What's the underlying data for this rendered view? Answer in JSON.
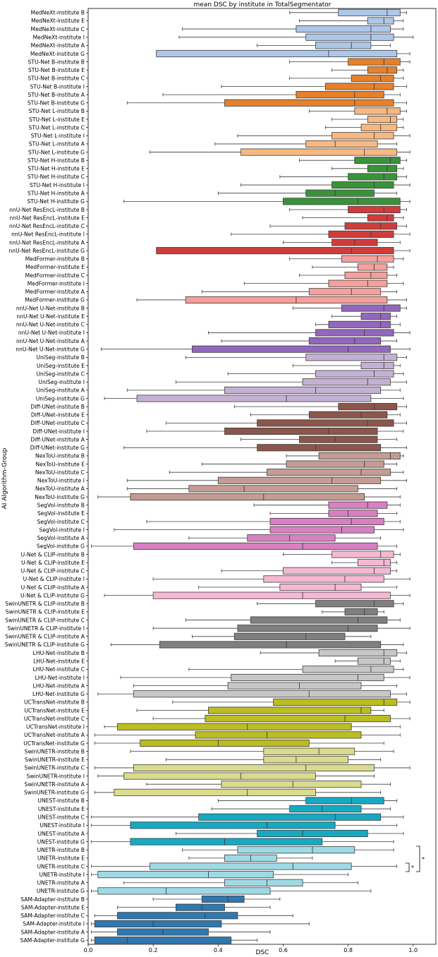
{
  "chart_data": {
    "type": "boxplot",
    "title": "mean DSC by institute in TotalSegmentator",
    "xlabel": "DSC",
    "ylabel": "AI Algorithm-Group",
    "xlim": [
      0.0,
      1.07
    ],
    "xticks": [
      0.0,
      0.2,
      0.4,
      0.6,
      0.8,
      1.0
    ],
    "xtick_labels": [
      "0.0",
      "0.2",
      "0.4",
      "0.6",
      "0.8",
      "1.0"
    ],
    "institutes": [
      "B",
      "E",
      "C",
      "I",
      "A",
      "G"
    ],
    "groups": [
      {
        "name": "MedNeXt",
        "color": "#aec7e8",
        "boxes": [
          [
            0.62,
            0.77,
            0.92,
            0.96,
            0.98
          ],
          [
            0.65,
            0.86,
            0.91,
            0.94,
            0.97
          ],
          [
            0.29,
            0.64,
            0.87,
            0.93,
            0.97
          ],
          [
            0.28,
            0.67,
            0.87,
            0.94,
            1.0
          ],
          [
            0.52,
            0.7,
            0.81,
            0.87,
            0.93
          ],
          [
            0.21,
            0.21,
            0.74,
            0.95,
            0.99
          ]
        ]
      },
      {
        "name": "STU-Net B",
        "color": "#e6812b",
        "boxes": [
          [
            0.62,
            0.8,
            0.91,
            0.96,
            0.99
          ],
          [
            0.75,
            0.86,
            0.92,
            0.95,
            0.97
          ],
          [
            0.62,
            0.81,
            0.9,
            0.94,
            0.97
          ],
          [
            0.41,
            0.73,
            0.88,
            0.94,
            0.98
          ],
          [
            0.23,
            0.64,
            0.82,
            0.91,
            0.96
          ],
          [
            0.12,
            0.42,
            0.82,
            0.94,
            0.98
          ]
        ]
      },
      {
        "name": "STU-Net L",
        "color": "#f7b881",
        "boxes": [
          [
            0.68,
            0.82,
            0.92,
            0.96,
            0.98
          ],
          [
            0.75,
            0.86,
            0.93,
            0.95,
            0.97
          ],
          [
            0.73,
            0.84,
            0.9,
            0.95,
            0.97
          ],
          [
            0.46,
            0.75,
            0.88,
            0.94,
            0.99
          ],
          [
            0.39,
            0.67,
            0.76,
            0.89,
            0.95
          ],
          [
            0.19,
            0.47,
            0.85,
            0.95,
            0.99
          ]
        ]
      },
      {
        "name": "STU-Net H",
        "color": "#3a933a",
        "boxes": [
          [
            0.65,
            0.82,
            0.93,
            0.96,
            0.98
          ],
          [
            0.75,
            0.86,
            0.92,
            0.95,
            0.97
          ],
          [
            0.59,
            0.8,
            0.91,
            0.95,
            0.98
          ],
          [
            0.47,
            0.75,
            0.88,
            0.94,
            0.99
          ],
          [
            0.4,
            0.67,
            0.76,
            0.88,
            0.95
          ],
          [
            0.11,
            0.6,
            0.83,
            0.96,
            0.99
          ]
        ]
      },
      {
        "name": "nnU-Net ResEncL",
        "color": "#d03c3c",
        "boxes": [
          [
            0.62,
            0.8,
            0.91,
            0.96,
            0.98
          ],
          [
            0.66,
            0.86,
            0.92,
            0.94,
            0.97
          ],
          [
            0.56,
            0.79,
            0.9,
            0.95,
            0.98
          ],
          [
            0.44,
            0.74,
            0.87,
            0.94,
            0.99
          ],
          [
            0.6,
            0.75,
            0.82,
            0.89,
            0.96
          ],
          [
            0.21,
            0.21,
            0.81,
            0.94,
            0.99
          ]
        ]
      },
      {
        "name": "MedFormer",
        "color": "#f5a09a",
        "boxes": [
          [
            0.62,
            0.78,
            0.89,
            0.94,
            0.97
          ],
          [
            0.69,
            0.83,
            0.88,
            0.92,
            0.94
          ],
          [
            0.65,
            0.79,
            0.87,
            0.92,
            0.95
          ],
          [
            0.48,
            0.74,
            0.86,
            0.92,
            0.97
          ],
          [
            0.35,
            0.68,
            0.81,
            0.9,
            0.95
          ],
          [
            0.15,
            0.3,
            0.64,
            0.92,
            0.98
          ]
        ]
      },
      {
        "name": "nnU-Net U-Net",
        "color": "#9367bd",
        "boxes": [
          [
            0.63,
            0.78,
            0.91,
            0.96,
            0.98
          ],
          [
            0.75,
            0.84,
            0.9,
            0.93,
            0.95
          ],
          [
            0.7,
            0.74,
            0.9,
            0.93,
            0.96
          ],
          [
            0.37,
            0.7,
            0.85,
            0.94,
            0.99
          ],
          [
            0.41,
            0.68,
            0.82,
            0.9,
            0.95
          ],
          [
            0.04,
            0.32,
            0.8,
            0.93,
            0.99
          ]
        ]
      },
      {
        "name": "UniSeg",
        "color": "#c5b0d5",
        "boxes": [
          [
            0.3,
            0.67,
            0.91,
            0.95,
            0.98
          ],
          [
            0.63,
            0.84,
            0.91,
            0.94,
            0.96
          ],
          [
            0.43,
            0.7,
            0.88,
            0.94,
            0.97
          ],
          [
            0.27,
            0.66,
            0.86,
            0.93,
            0.98
          ],
          [
            0.12,
            0.42,
            0.7,
            0.9,
            0.96
          ],
          [
            0.05,
            0.15,
            0.61,
            0.87,
            0.97
          ]
        ]
      },
      {
        "name": "Diff-UNet",
        "color": "#8c564b",
        "boxes": [
          [
            0.45,
            0.77,
            0.88,
            0.95,
            0.98
          ],
          [
            0.5,
            0.68,
            0.84,
            0.92,
            0.96
          ],
          [
            0.24,
            0.52,
            0.86,
            0.94,
            0.98
          ],
          [
            0.18,
            0.42,
            0.74,
            0.89,
            0.97
          ],
          [
            0.47,
            0.65,
            0.76,
            0.89,
            0.95
          ],
          [
            0.11,
            0.52,
            0.7,
            0.9,
            0.98
          ]
        ]
      },
      {
        "name": "NexToU",
        "color": "#c49c94",
        "boxes": [
          [
            0.61,
            0.71,
            0.93,
            0.96,
            0.97
          ],
          [
            0.35,
            0.61,
            0.85,
            0.91,
            0.95
          ],
          [
            0.25,
            0.55,
            0.84,
            0.93,
            0.97
          ],
          [
            0.12,
            0.4,
            0.75,
            0.9,
            0.98
          ],
          [
            0.12,
            0.31,
            0.48,
            0.83,
            0.95
          ],
          [
            0.03,
            0.13,
            0.54,
            0.85,
            0.96
          ]
        ]
      },
      {
        "name": "SegVol",
        "color": "#d880c2",
        "boxes": [
          [
            0.51,
            0.74,
            0.86,
            0.92,
            0.96
          ],
          [
            0.56,
            0.74,
            0.8,
            0.89,
            0.95
          ],
          [
            0.18,
            0.56,
            0.81,
            0.91,
            0.96
          ],
          [
            0.08,
            0.56,
            0.78,
            0.88,
            0.97
          ],
          [
            0.31,
            0.49,
            0.62,
            0.76,
            0.9
          ],
          [
            0.01,
            0.14,
            0.66,
            0.89,
            0.95
          ]
        ]
      },
      {
        "name": "U-Net & CLIP",
        "color": "#f5b8d2",
        "boxes": [
          [
            0.6,
            0.75,
            0.9,
            0.94,
            0.96
          ],
          [
            0.75,
            0.83,
            0.91,
            0.93,
            0.95
          ],
          [
            0.41,
            0.6,
            0.88,
            0.93,
            0.95
          ],
          [
            0.2,
            0.54,
            0.79,
            0.91,
            0.99
          ],
          [
            0.34,
            0.59,
            0.76,
            0.84,
            0.95
          ],
          [
            0.05,
            0.2,
            0.66,
            0.93,
            0.99
          ]
        ]
      },
      {
        "name": "SwinUNETR & CLIP",
        "color": "#7f7f7f",
        "boxes": [
          [
            0.52,
            0.7,
            0.88,
            0.94,
            0.97
          ],
          [
            0.72,
            0.79,
            0.85,
            0.89,
            0.91
          ],
          [
            0.3,
            0.5,
            0.83,
            0.92,
            0.96
          ],
          [
            0.2,
            0.46,
            0.8,
            0.89,
            0.99
          ],
          [
            0.32,
            0.45,
            0.67,
            0.79,
            0.87
          ],
          [
            0.07,
            0.22,
            0.61,
            0.9,
            0.97
          ]
        ]
      },
      {
        "name": "LHU-Net",
        "color": "#c7c7c7",
        "boxes": [
          [
            0.53,
            0.71,
            0.91,
            0.95,
            0.98
          ],
          [
            0.76,
            0.83,
            0.91,
            0.93,
            0.96
          ],
          [
            0.31,
            0.66,
            0.87,
            0.94,
            0.97
          ],
          [
            0.1,
            0.44,
            0.83,
            0.91,
            0.99
          ],
          [
            0.14,
            0.43,
            0.65,
            0.84,
            0.95
          ],
          [
            0.03,
            0.14,
            0.68,
            0.93,
            0.98
          ]
        ]
      },
      {
        "name": "UCTransNet",
        "color": "#bcbd22",
        "boxes": [
          [
            0.26,
            0.57,
            0.91,
            0.95,
            0.99
          ],
          [
            0.15,
            0.37,
            0.84,
            0.87,
            0.91
          ],
          [
            0.2,
            0.36,
            0.79,
            0.93,
            0.99
          ],
          [
            0.05,
            0.09,
            0.49,
            0.81,
            0.96
          ],
          [
            0.02,
            0.33,
            0.55,
            0.84,
            0.96
          ],
          [
            0.02,
            0.16,
            0.4,
            0.68,
            0.91
          ]
        ]
      },
      {
        "name": "SwinUNETR",
        "color": "#dbdb8d",
        "boxes": [
          [
            0.13,
            0.54,
            0.71,
            0.82,
            0.94
          ],
          [
            0.24,
            0.54,
            0.64,
            0.8,
            0.9
          ],
          [
            0.02,
            0.14,
            0.67,
            0.88,
            0.99
          ],
          [
            0.03,
            0.11,
            0.47,
            0.7,
            0.88
          ],
          [
            0.18,
            0.41,
            0.63,
            0.84,
            0.93
          ],
          [
            0.02,
            0.08,
            0.49,
            0.7,
            0.9
          ]
        ]
      },
      {
        "name": "UNEST",
        "color": "#17a9c1",
        "boxes": [
          [
            0.4,
            0.67,
            0.81,
            0.91,
            0.95
          ],
          [
            0.38,
            0.62,
            0.72,
            0.84,
            0.93
          ],
          [
            0.01,
            0.34,
            0.76,
            0.9,
            0.97
          ],
          [
            0.01,
            0.13,
            0.55,
            0.76,
            0.95
          ],
          [
            0.27,
            0.52,
            0.66,
            0.86,
            0.97
          ],
          [
            0.01,
            0.13,
            0.42,
            0.72,
            0.94
          ]
        ]
      },
      {
        "name": "UNETR",
        "color": "#9edae5",
        "boxes": [
          [
            0.29,
            0.46,
            0.69,
            0.82,
            0.94
          ],
          [
            0.31,
            0.42,
            0.5,
            0.58,
            0.69
          ],
          [
            0.01,
            0.19,
            0.63,
            0.81,
            0.95
          ],
          [
            0.01,
            0.03,
            0.37,
            0.57,
            0.8
          ],
          [
            0.11,
            0.42,
            0.55,
            0.66,
            0.83
          ],
          [
            0.01,
            0.03,
            0.24,
            0.56,
            0.87
          ]
        ]
      },
      {
        "name": "SAM-Adapter",
        "color": "#2f78b0",
        "boxes": [
          [
            0.2,
            0.35,
            0.43,
            0.48,
            0.59
          ],
          [
            0.09,
            0.27,
            0.35,
            0.42,
            0.56
          ],
          [
            0.02,
            0.09,
            0.36,
            0.46,
            0.63
          ],
          [
            0.01,
            0.02,
            0.2,
            0.41,
            0.68
          ],
          [
            0.01,
            0.09,
            0.23,
            0.37,
            0.56
          ],
          [
            0.01,
            0.02,
            0.12,
            0.44,
            0.52
          ]
        ]
      }
    ],
    "annotations": [
      "*"
    ]
  }
}
